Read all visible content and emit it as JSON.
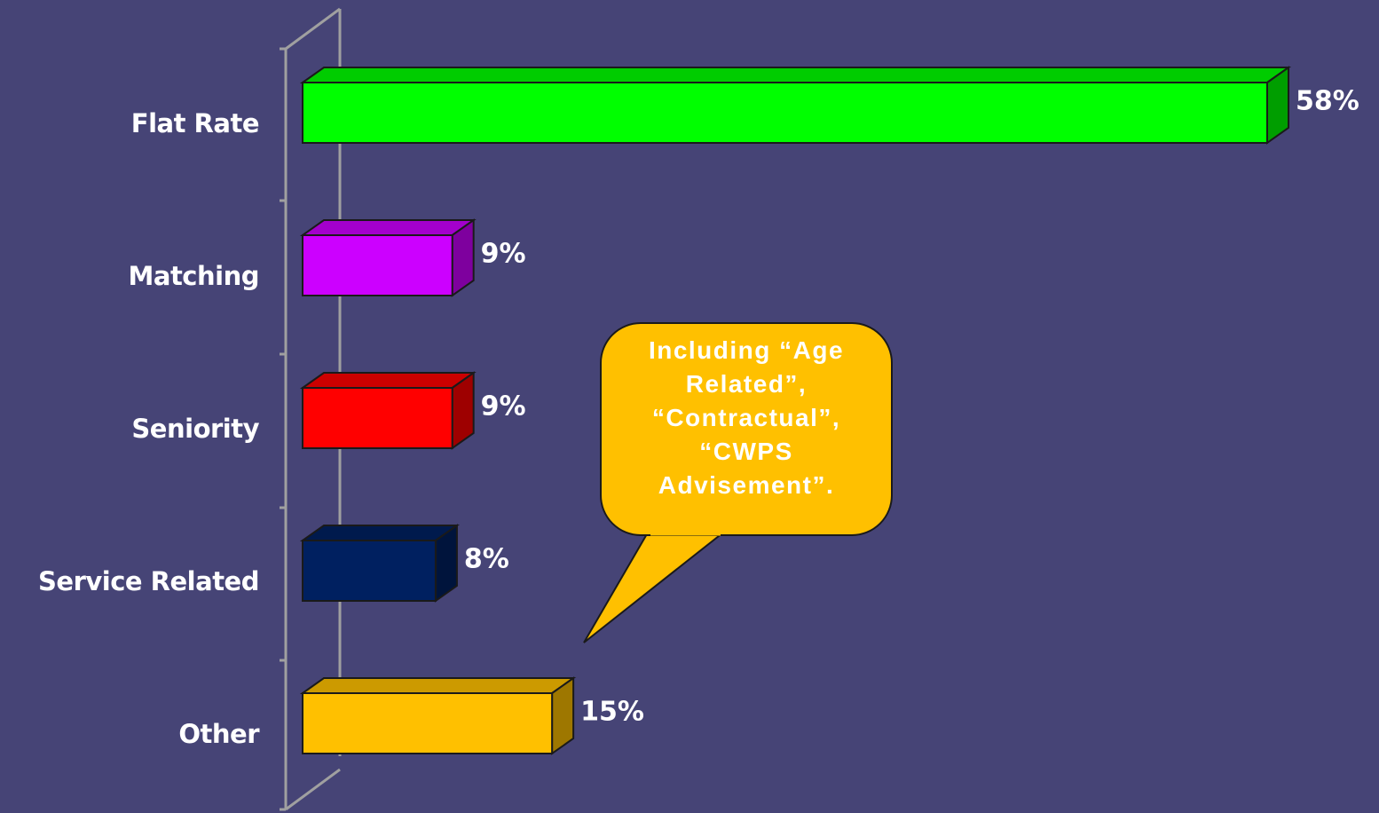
{
  "chart_data": {
    "type": "bar",
    "categories": [
      "Flat Rate",
      "Matching",
      "Seniority",
      "Service Related",
      "Other"
    ],
    "values": [
      58,
      9,
      9,
      8,
      15
    ],
    "value_labels": [
      "58%",
      "9%",
      "9%",
      "8%",
      "15%"
    ],
    "colors": [
      "#00ff00",
      "#cc00ff",
      "#ff0000",
      "#002060",
      "#ffc000"
    ],
    "annotation": "Including “Age Related”, “Contractual”, “CWPS Advisement”."
  }
}
